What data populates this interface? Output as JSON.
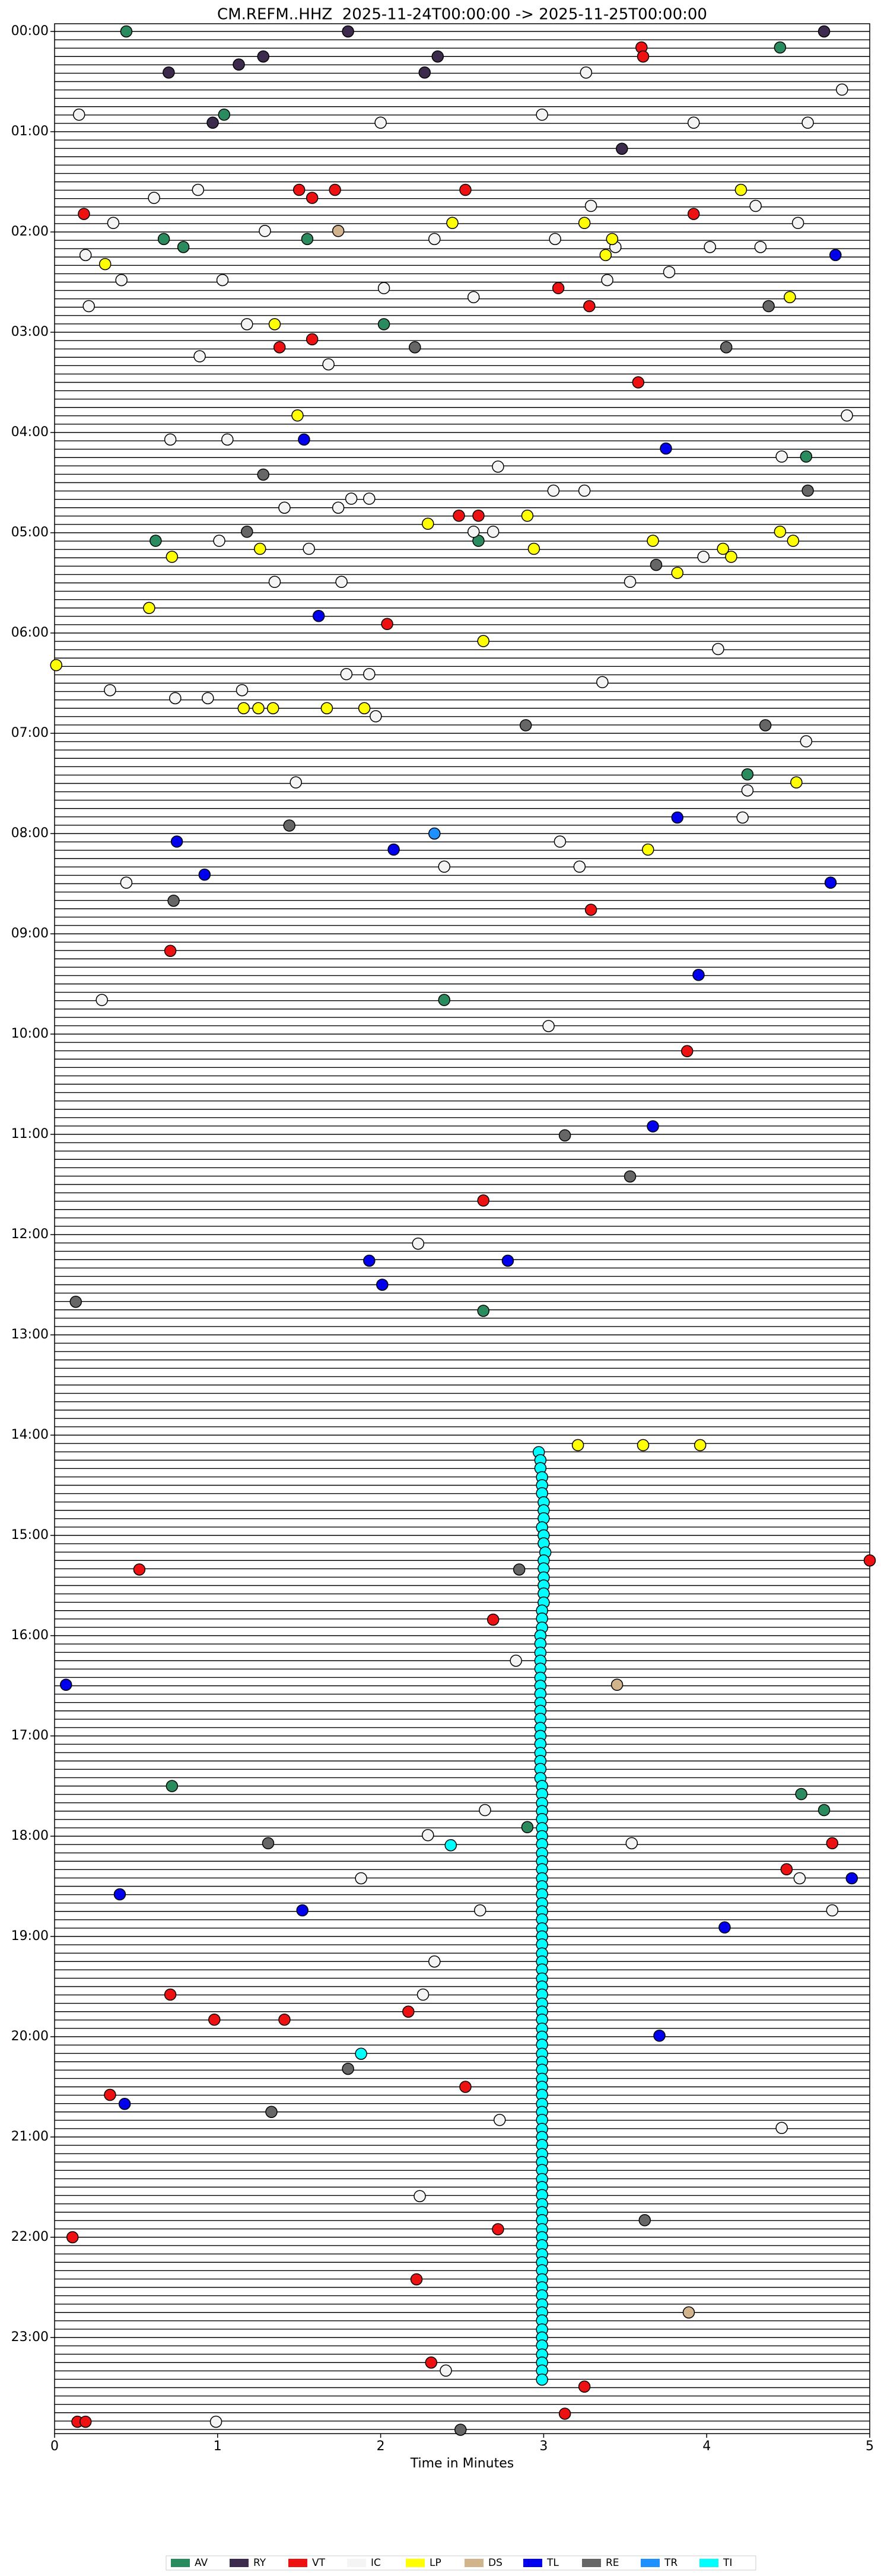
{
  "chart_data": {
    "type": "scatter",
    "title": "CM.REFM..HHZ  2025-11-24T00:00:00 -> 2025-11-25T00:00:00",
    "xlabel": "Time in Minutes",
    "xlim": [
      0,
      5
    ],
    "xticks": [
      0,
      1,
      2,
      3,
      4,
      5
    ],
    "ylim": [
      0,
      24
    ],
    "y_inverted": true,
    "yticks": [
      {
        "value": 0,
        "label": "00:00"
      },
      {
        "value": 1,
        "label": "01:00"
      },
      {
        "value": 2,
        "label": "02:00"
      },
      {
        "value": 3,
        "label": "03:00"
      },
      {
        "value": 4,
        "label": "04:00"
      },
      {
        "value": 5,
        "label": "05:00"
      },
      {
        "value": 6,
        "label": "06:00"
      },
      {
        "value": 7,
        "label": "07:00"
      },
      {
        "value": 8,
        "label": "08:00"
      },
      {
        "value": 9,
        "label": "09:00"
      },
      {
        "value": 10,
        "label": "10:00"
      },
      {
        "value": 11,
        "label": "11:00"
      },
      {
        "value": 12,
        "label": "12:00"
      },
      {
        "value": 13,
        "label": "13:00"
      },
      {
        "value": 14,
        "label": "14:00"
      },
      {
        "value": 15,
        "label": "15:00"
      },
      {
        "value": 16,
        "label": "16:00"
      },
      {
        "value": 17,
        "label": "17:00"
      },
      {
        "value": 18,
        "label": "18:00"
      },
      {
        "value": 19,
        "label": "19:00"
      },
      {
        "value": 20,
        "label": "20:00"
      },
      {
        "value": 21,
        "label": "21:00"
      },
      {
        "value": 22,
        "label": "22:00"
      },
      {
        "value": 23,
        "label": "23:00"
      }
    ],
    "legend": "lower center",
    "series": [
      {
        "name": "AV",
        "color": "#2a8c5e",
        "x": [
          0.44,
          4.45,
          1.04,
          0.67,
          1.55,
          0.79,
          2.02,
          4.61,
          0.62,
          2.6,
          4.25,
          2.39,
          2.63,
          0.72,
          4.58,
          4.72,
          2.9
        ],
        "values": [
          0,
          0.16,
          0.83,
          2.07,
          2.07,
          2.15,
          2.92,
          4.24,
          5.08,
          5.08,
          7.41,
          9.66,
          12.76,
          17.5,
          17.58,
          17.74,
          17.91
        ]
      },
      {
        "name": "RY",
        "color": "#3d2b4d",
        "x": [
          1.8,
          4.72,
          2.35,
          1.28,
          1.13,
          0.7,
          2.27,
          0.97,
          3.48
        ],
        "values": [
          0,
          0,
          0.25,
          0.25,
          0.33,
          0.41,
          0.41,
          0.91,
          1.17
        ]
      },
      {
        "name": "VT",
        "color": "#ee1111",
        "x": [
          3.6,
          3.61,
          2.52,
          1.5,
          1.72,
          1.58,
          0.18,
          3.92,
          3.09,
          3.28,
          1.58,
          1.38,
          3.58,
          2.48,
          2.6,
          2.04,
          3.29,
          0.71,
          3.88,
          2.63,
          5.0,
          0.52,
          2.69,
          4.77,
          4.49,
          0.71,
          2.17,
          0.98,
          1.41,
          2.52,
          0.34,
          2.72,
          0.11,
          2.22,
          2.31,
          3.25,
          3.13,
          0.14,
          0.19
        ],
        "values": [
          0.16,
          0.25,
          1.58,
          1.58,
          1.58,
          1.66,
          1.82,
          1.82,
          2.56,
          2.74,
          3.07,
          3.15,
          3.5,
          4.83,
          4.83,
          5.91,
          8.76,
          9.17,
          10.17,
          11.66,
          15.25,
          15.34,
          15.84,
          18.07,
          18.33,
          19.58,
          19.75,
          19.83,
          19.83,
          20.5,
          20.58,
          21.92,
          22.0,
          22.42,
          23.25,
          23.49,
          23.76,
          23.84,
          23.84
        ]
      },
      {
        "name": "IC",
        "color": "#f4f4f4",
        "x": [
          3.26,
          4.83,
          0.15,
          2.99,
          2.0,
          3.92,
          4.62,
          0.88,
          0.61,
          3.29,
          4.3,
          0.36,
          4.56,
          1.29,
          2.33,
          3.07,
          3.44,
          4.02,
          4.33,
          0.19,
          3.77,
          0.41,
          1.03,
          3.39,
          2.02,
          2.57,
          0.21,
          1.18,
          0.89,
          1.68,
          4.86,
          0.71,
          1.06,
          4.46,
          2.72,
          3.06,
          3.25,
          1.82,
          1.93,
          1.41,
          1.74,
          2.57,
          2.69,
          1.01,
          1.56,
          3.98,
          1.35,
          1.76,
          3.53,
          4.07,
          1.79,
          1.93,
          3.36,
          0.34,
          1.15,
          0.74,
          0.94,
          1.97,
          4.61,
          1.48,
          4.25,
          4.22,
          3.1,
          2.39,
          3.22,
          0.44,
          0.29,
          3.03,
          2.23,
          2.83,
          2.64,
          2.29,
          3.54,
          1.88,
          4.57,
          2.61,
          4.77,
          2.33,
          2.26,
          2.73,
          4.46,
          2.24,
          2.4,
          0.99
        ],
        "values": [
          0.41,
          0.58,
          0.83,
          0.83,
          0.91,
          0.91,
          0.91,
          1.58,
          1.66,
          1.74,
          1.74,
          1.91,
          1.91,
          1.99,
          2.07,
          2.07,
          2.15,
          2.15,
          2.15,
          2.23,
          2.4,
          2.48,
          2.48,
          2.48,
          2.56,
          2.65,
          2.74,
          2.92,
          3.24,
          3.32,
          3.83,
          4.07,
          4.07,
          4.24,
          4.34,
          4.58,
          4.58,
          4.66,
          4.66,
          4.75,
          4.75,
          4.99,
          4.99,
          5.08,
          5.16,
          5.24,
          5.49,
          5.49,
          5.49,
          6.16,
          6.41,
          6.41,
          6.49,
          6.57,
          6.57,
          6.65,
          6.65,
          6.83,
          7.08,
          7.49,
          7.57,
          7.84,
          8.08,
          8.33,
          8.33,
          8.49,
          9.66,
          9.92,
          12.09,
          16.25,
          17.74,
          17.99,
          18.07,
          18.42,
          18.42,
          18.74,
          18.74,
          19.25,
          19.58,
          20.83,
          20.91,
          21.59,
          23.33,
          23.84
        ]
      },
      {
        "name": "LP",
        "color": "#ffff00",
        "x": [
          4.21,
          2.44,
          3.25,
          3.42,
          3.38,
          0.31,
          4.51,
          1.35,
          1.49,
          2.9,
          2.29,
          4.45,
          3.67,
          4.53,
          1.26,
          2.94,
          4.1,
          0.72,
          4.15,
          3.82,
          0.58,
          2.63,
          0.01,
          1.16,
          1.25,
          1.34,
          1.67,
          1.9,
          4.55,
          3.64,
          3.21,
          3.61,
          3.96
        ],
        "values": [
          1.58,
          1.91,
          1.91,
          2.07,
          2.23,
          2.32,
          2.65,
          2.92,
          3.83,
          4.83,
          4.91,
          4.99,
          5.08,
          5.08,
          5.16,
          5.16,
          5.16,
          5.24,
          5.24,
          5.4,
          5.75,
          6.08,
          6.32,
          6.75,
          6.75,
          6.75,
          6.75,
          6.75,
          7.49,
          8.16,
          14.1,
          14.1,
          14.1
        ]
      },
      {
        "name": "DS",
        "color": "#d2b48c",
        "x": [
          1.74,
          3.45,
          3.89
        ],
        "values": [
          1.99,
          16.49,
          22.75
        ]
      },
      {
        "name": "TL",
        "color": "#0000ee",
        "x": [
          4.79,
          1.53,
          3.75,
          1.62,
          3.82,
          0.75,
          2.08,
          0.92,
          4.76,
          3.95,
          3.67,
          1.93,
          2.78,
          2.01,
          0.07,
          4.89,
          0.4,
          1.52,
          4.11,
          3.71,
          0.43
        ],
        "values": [
          2.23,
          4.07,
          4.16,
          5.83,
          7.84,
          8.08,
          8.16,
          8.41,
          8.49,
          9.41,
          10.92,
          12.26,
          12.26,
          12.5,
          16.49,
          18.42,
          18.58,
          18.74,
          18.91,
          19.99,
          20.67
        ]
      },
      {
        "name": "RE",
        "color": "#666666",
        "x": [
          4.38,
          2.21,
          4.12,
          1.28,
          4.62,
          1.18,
          3.69,
          2.89,
          4.36,
          1.44,
          0.73,
          3.13,
          3.53,
          0.13,
          2.85,
          1.31,
          1.8,
          1.33,
          3.62,
          2.49
        ],
        "values": [
          2.74,
          3.15,
          3.15,
          4.42,
          4.58,
          4.99,
          5.32,
          6.92,
          6.92,
          7.92,
          8.67,
          11.01,
          11.42,
          12.67,
          15.34,
          18.07,
          20.32,
          20.75,
          21.83,
          23.92
        ]
      },
      {
        "name": "TR",
        "color": "#1e90ff",
        "x": [
          2.33
        ],
        "values": [
          8.0
        ]
      },
      {
        "name": "TI",
        "color": "#00ffff",
        "x": [
          2.97,
          2.98,
          2.98,
          2.99,
          2.99,
          2.99,
          3.0,
          3.0,
          3.0,
          2.99,
          3.0,
          3.0,
          3.01,
          3.0,
          3.0,
          3.0,
          3.0,
          3.0,
          3.0,
          2.99,
          2.99,
          2.99,
          2.98,
          2.98,
          2.98,
          2.98,
          2.98,
          2.98,
          2.98,
          2.98,
          2.98,
          2.98,
          2.98,
          2.98,
          2.98,
          2.98,
          2.98,
          2.98,
          2.98,
          2.98,
          2.99,
          2.99,
          2.99,
          2.99,
          2.99,
          2.99,
          2.99,
          2.99,
          2.99,
          2.99,
          2.99,
          2.99,
          2.99,
          2.99,
          2.99,
          2.99,
          2.99,
          2.99,
          2.99,
          2.99,
          2.99,
          2.99,
          2.99,
          2.99,
          2.99,
          2.99,
          2.99,
          2.99,
          2.99,
          2.99,
          2.99,
          2.99,
          2.99,
          2.99,
          2.99,
          2.99,
          2.99,
          2.99,
          2.99,
          2.99,
          2.99,
          2.99,
          2.99,
          2.99,
          2.99,
          2.99,
          2.99,
          2.99,
          2.99,
          2.99,
          2.99,
          2.99,
          2.99,
          2.99,
          2.99,
          2.99,
          2.99,
          2.99,
          2.99,
          2.99,
          2.99,
          2.99,
          2.99,
          2.99,
          2.99,
          2.99,
          2.99,
          2.99,
          2.99,
          2.99,
          2.99,
          2.99,
          2.43,
          1.88
        ],
        "values": [
          14.17,
          14.25,
          14.33,
          14.42,
          14.5,
          14.58,
          14.67,
          14.75,
          14.83,
          14.92,
          15,
          15.08,
          15.17,
          15.25,
          15.33,
          15.42,
          15.5,
          15.58,
          15.67,
          15.75,
          15.83,
          15.92,
          16,
          16.08,
          16.17,
          16.25,
          16.33,
          16.42,
          16.5,
          16.58,
          16.67,
          16.75,
          16.83,
          16.92,
          17,
          17.08,
          17.17,
          17.25,
          17.33,
          17.42,
          17.5,
          17.58,
          17.67,
          17.75,
          17.83,
          17.92,
          18,
          18.08,
          18.17,
          18.25,
          18.33,
          18.42,
          18.5,
          18.58,
          18.67,
          18.75,
          18.83,
          18.92,
          19,
          19.08,
          19.17,
          19.25,
          19.33,
          19.42,
          19.5,
          19.58,
          19.67,
          19.75,
          19.83,
          19.92,
          20,
          20.08,
          20.17,
          20.25,
          20.33,
          20.42,
          20.5,
          20.58,
          20.67,
          20.75,
          20.83,
          20.92,
          21,
          21.08,
          21.17,
          21.25,
          21.33,
          21.42,
          21.5,
          21.58,
          21.67,
          21.75,
          21.83,
          21.92,
          22,
          22.08,
          22.17,
          22.25,
          22.33,
          22.42,
          22.5,
          22.58,
          22.67,
          22.75,
          22.83,
          22.92,
          23,
          23.08,
          23.17,
          23.25,
          23.33,
          23.42,
          18.09,
          20.17
        ]
      }
    ]
  }
}
